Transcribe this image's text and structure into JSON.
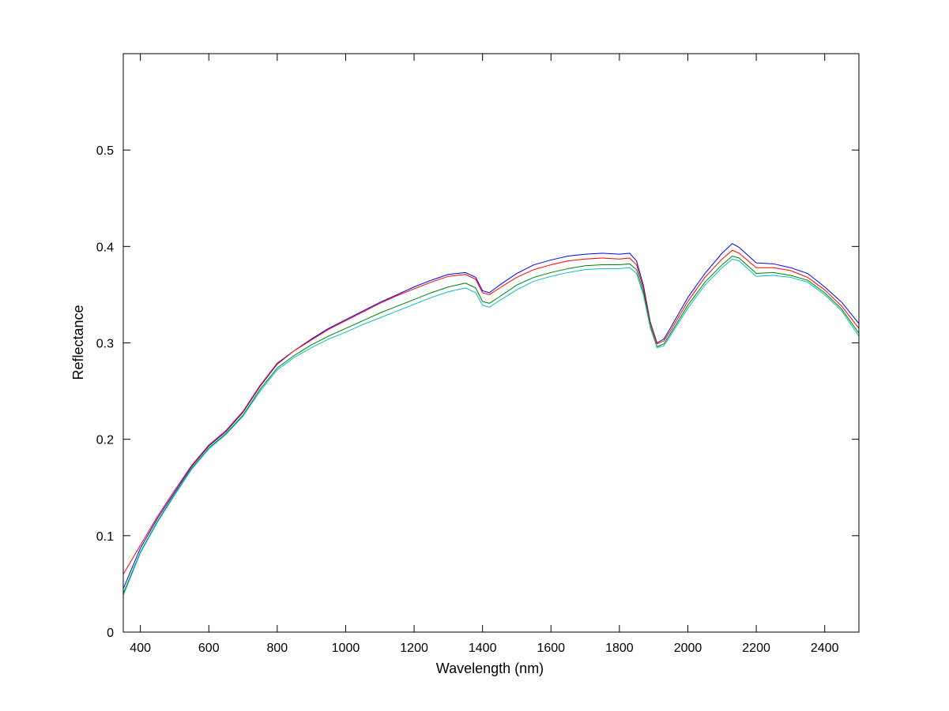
{
  "chart_data": {
    "type": "line",
    "title": "",
    "xlabel": "Wavelength (nm)",
    "ylabel": "Reflectance",
    "xlim": [
      350,
      2500
    ],
    "ylim": [
      0,
      0.6
    ],
    "xticks": [
      400,
      600,
      800,
      1000,
      1200,
      1400,
      1600,
      1800,
      2000,
      2200,
      2400
    ],
    "xtick_labels": [
      "400",
      "600",
      "800",
      "1000",
      "1200",
      "1400",
      "1600",
      "1800",
      "2000",
      "2200",
      "2400"
    ],
    "yticks": [
      0,
      0.1,
      0.2,
      0.3,
      0.4,
      0.5
    ],
    "ytick_labels": [
      "0",
      "0.1",
      "0.2",
      "0.3",
      "0.4",
      "0.5"
    ],
    "grid": false,
    "legend": "none",
    "x": [
      350,
      400,
      450,
      500,
      550,
      600,
      650,
      700,
      750,
      800,
      850,
      900,
      950,
      1000,
      1050,
      1100,
      1150,
      1200,
      1250,
      1300,
      1350,
      1380,
      1400,
      1420,
      1450,
      1500,
      1550,
      1600,
      1650,
      1700,
      1750,
      1800,
      1830,
      1850,
      1870,
      1890,
      1910,
      1930,
      1950,
      2000,
      2050,
      2100,
      2130,
      2150,
      2200,
      2250,
      2300,
      2350,
      2400,
      2450,
      2500
    ],
    "series": [
      {
        "color": "#0000ff",
        "values": [
          0.045,
          0.087,
          0.118,
          0.145,
          0.172,
          0.193,
          0.208,
          0.228,
          0.255,
          0.278,
          0.292,
          0.304,
          0.315,
          0.324,
          0.333,
          0.342,
          0.35,
          0.358,
          0.365,
          0.371,
          0.373,
          0.368,
          0.354,
          0.352,
          0.36,
          0.372,
          0.381,
          0.386,
          0.39,
          0.392,
          0.393,
          0.392,
          0.393,
          0.385,
          0.36,
          0.322,
          0.3,
          0.304,
          0.316,
          0.347,
          0.372,
          0.393,
          0.403,
          0.399,
          0.383,
          0.382,
          0.378,
          0.372,
          0.358,
          0.342,
          0.32
        ]
      },
      {
        "color": "#ff0000",
        "values": [
          0.06,
          0.09,
          0.12,
          0.147,
          0.173,
          0.194,
          0.209,
          0.229,
          0.256,
          0.279,
          0.292,
          0.303,
          0.314,
          0.323,
          0.332,
          0.341,
          0.349,
          0.356,
          0.363,
          0.369,
          0.371,
          0.366,
          0.352,
          0.35,
          0.357,
          0.368,
          0.376,
          0.381,
          0.385,
          0.387,
          0.388,
          0.387,
          0.388,
          0.381,
          0.357,
          0.321,
          0.299,
          0.302,
          0.313,
          0.343,
          0.368,
          0.387,
          0.396,
          0.393,
          0.378,
          0.378,
          0.375,
          0.368,
          0.355,
          0.338,
          0.315
        ]
      },
      {
        "color": "#008000",
        "values": [
          0.04,
          0.083,
          0.115,
          0.143,
          0.17,
          0.191,
          0.206,
          0.225,
          0.252,
          0.274,
          0.287,
          0.298,
          0.307,
          0.315,
          0.323,
          0.331,
          0.338,
          0.345,
          0.352,
          0.358,
          0.362,
          0.357,
          0.343,
          0.341,
          0.348,
          0.36,
          0.368,
          0.373,
          0.377,
          0.38,
          0.381,
          0.381,
          0.382,
          0.376,
          0.353,
          0.318,
          0.296,
          0.299,
          0.31,
          0.339,
          0.363,
          0.381,
          0.39,
          0.388,
          0.372,
          0.373,
          0.37,
          0.365,
          0.352,
          0.335,
          0.31
        ]
      },
      {
        "color": "#00bfbf",
        "values": [
          0.038,
          0.082,
          0.114,
          0.142,
          0.169,
          0.19,
          0.205,
          0.224,
          0.25,
          0.272,
          0.285,
          0.295,
          0.304,
          0.311,
          0.319,
          0.326,
          0.333,
          0.34,
          0.347,
          0.353,
          0.357,
          0.352,
          0.339,
          0.337,
          0.344,
          0.355,
          0.364,
          0.369,
          0.373,
          0.376,
          0.377,
          0.377,
          0.378,
          0.372,
          0.35,
          0.316,
          0.295,
          0.297,
          0.308,
          0.336,
          0.36,
          0.378,
          0.387,
          0.385,
          0.369,
          0.37,
          0.368,
          0.363,
          0.35,
          0.333,
          0.307
        ]
      }
    ]
  }
}
